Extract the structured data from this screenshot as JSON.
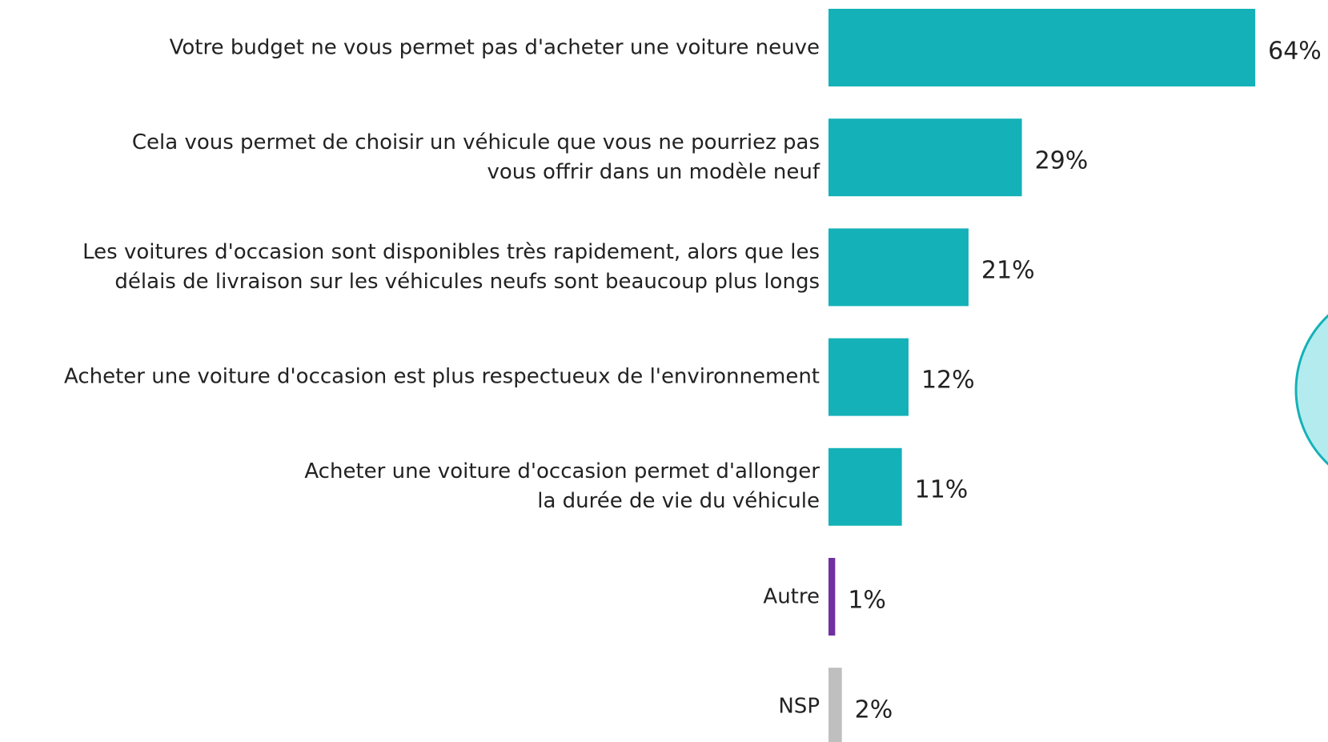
{
  "chart_data": {
    "type": "bar",
    "orientation": "horizontal",
    "categories": [
      "Votre budget ne vous permet pas d'acheter une voiture neuve",
      "Cela vous permet de choisir un véhicule que vous ne pourriez pas\nvous offrir dans un modèle neuf",
      "Les voitures d'occasion sont disponibles très rapidement, alors que les\ndélais de livraison sur les véhicules neufs sont beaucoup plus longs",
      "Acheter une voiture d'occasion est plus respectueux de l'environnement",
      "Acheter une voiture d'occasion permet d'allonger\nla durée de vie du véhicule",
      "Autre",
      "NSP"
    ],
    "values": [
      64,
      29,
      21,
      12,
      11,
      1,
      2
    ],
    "value_labels": [
      "64%",
      "29%",
      "21%",
      "12%",
      "11%",
      "1%",
      "2%"
    ],
    "colors": [
      "#14b1b8",
      "#14b1b8",
      "#14b1b8",
      "#14b1b8",
      "#14b1b8",
      "#7030a0",
      "#bfbfbf"
    ]
  }
}
